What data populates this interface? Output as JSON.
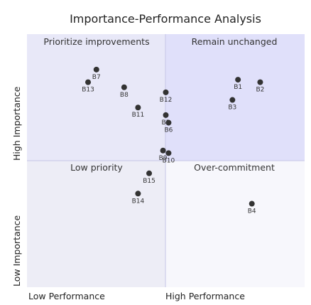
{
  "chart_data": {
    "type": "scatter",
    "title": "Importance-Performance Analysis",
    "xlim": [
      0,
      1
    ],
    "ylim": [
      0,
      1
    ],
    "x_axis_labels": {
      "low": "Low Performance",
      "high": "High Performance"
    },
    "y_axis_labels": {
      "low": "Low Importance",
      "high": "High Importance"
    },
    "quadrants": {
      "top_left": {
        "label": "Prioritize improvements",
        "color": "#e8e8f8"
      },
      "top_right": {
        "label": "Remain unchanged",
        "color": "#e0e0fa"
      },
      "bottom_left": {
        "label": "Low priority",
        "color": "#ededf6"
      },
      "bottom_right": {
        "label": "Over-commitment",
        "color": "#f7f7fc"
      }
    },
    "quadrant_divider_color": "#c6c6e6",
    "point_color": "#333333",
    "points": [
      {
        "label": "B1",
        "x": 0.76,
        "y": 0.82
      },
      {
        "label": "B2",
        "x": 0.84,
        "y": 0.81
      },
      {
        "label": "B3",
        "x": 0.74,
        "y": 0.74
      },
      {
        "label": "B4",
        "x": 0.81,
        "y": 0.33
      },
      {
        "label": "B5",
        "x": 0.5,
        "y": 0.68
      },
      {
        "label": "B6",
        "x": 0.51,
        "y": 0.65
      },
      {
        "label": "B7",
        "x": 0.25,
        "y": 0.86
      },
      {
        "label": "B8",
        "x": 0.35,
        "y": 0.79
      },
      {
        "label": "B9",
        "x": 0.49,
        "y": 0.54
      },
      {
        "label": "B10",
        "x": 0.51,
        "y": 0.53
      },
      {
        "label": "B11",
        "x": 0.4,
        "y": 0.71
      },
      {
        "label": "B12",
        "x": 0.5,
        "y": 0.77
      },
      {
        "label": "B13",
        "x": 0.22,
        "y": 0.81
      },
      {
        "label": "B14",
        "x": 0.4,
        "y": 0.37
      },
      {
        "label": "B15",
        "x": 0.44,
        "y": 0.45
      }
    ]
  }
}
